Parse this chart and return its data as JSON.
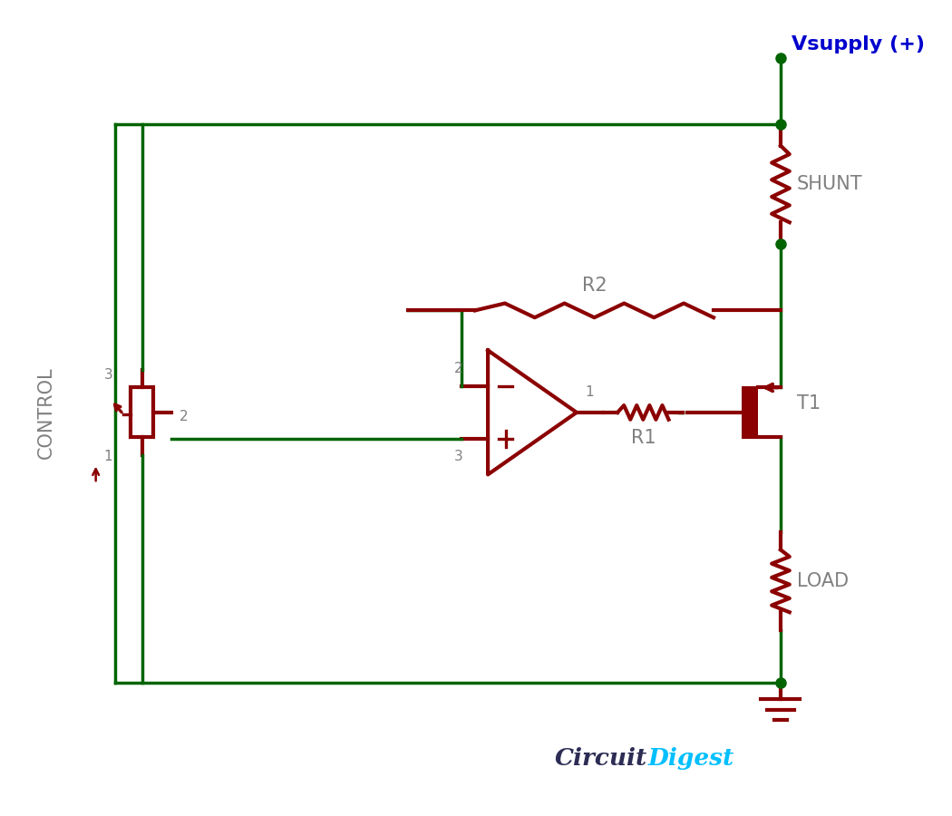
{
  "bg_color": "#ffffff",
  "circuit_color": "#8B0000",
  "wire_color": "#006400",
  "dot_color": "#006400",
  "label_color": "#808080",
  "vsupply_color": "#0000CD",
  "vsupply_text": "Vsupply (+)",
  "shunt_text": "SHUNT",
  "r2_text": "R2",
  "r1_text": "R1",
  "t1_text": "T1",
  "load_text": "LOAD",
  "control_text": "CONTROL",
  "circuit_part": "Circuit",
  "digest_part": "Digest",
  "circuit_color_text": "#1a1a2e",
  "digest_color_text": "#00BFFF"
}
